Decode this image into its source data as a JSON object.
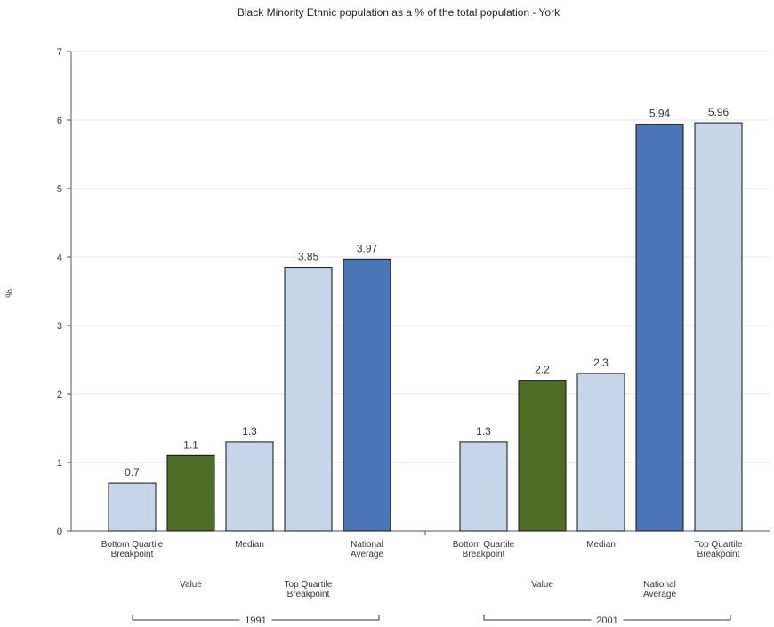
{
  "chart_data": {
    "type": "bar",
    "title": "Black Minority Ethnic population as a % of the total population - York",
    "ylabel": "%",
    "ylim": [
      0,
      7
    ],
    "yticks": [
      0,
      1,
      2,
      3,
      4,
      5,
      6,
      7
    ],
    "grid": true,
    "groups": [
      {
        "label": "1991",
        "bars": [
          {
            "category": [
              "Bottom Quartile",
              "Breakpoint"
            ],
            "value": 0.7,
            "value_label": "0.7",
            "kind": "quartile"
          },
          {
            "category": [
              "Value"
            ],
            "value": 1.1,
            "value_label": "1.1",
            "kind": "value"
          },
          {
            "category": [
              "Median"
            ],
            "value": 1.3,
            "value_label": "1.3",
            "kind": "quartile"
          },
          {
            "category": [
              "Top Quartile",
              "Breakpoint"
            ],
            "value": 3.85,
            "value_label": "3.85",
            "kind": "quartile"
          },
          {
            "category": [
              "National",
              "Average"
            ],
            "value": 3.97,
            "value_label": "3.97",
            "kind": "national"
          }
        ]
      },
      {
        "label": "2001",
        "bars": [
          {
            "category": [
              "Bottom Quartile",
              "Breakpoint"
            ],
            "value": 1.3,
            "value_label": "1.3",
            "kind": "quartile"
          },
          {
            "category": [
              "Value"
            ],
            "value": 2.2,
            "value_label": "2.2",
            "kind": "value"
          },
          {
            "category": [
              "Median"
            ],
            "value": 2.3,
            "value_label": "2.3",
            "kind": "quartile"
          },
          {
            "category": [
              "National",
              "Average"
            ],
            "value": 5.94,
            "value_label": "5.94",
            "kind": "national"
          },
          {
            "category": [
              "Top Quartile",
              "Breakpoint"
            ],
            "value": 5.96,
            "value_label": "5.96",
            "kind": "quartile"
          }
        ]
      }
    ],
    "colors": {
      "quartile": "#c5d5ea",
      "value": "#4e6e26",
      "national": "#4a76b8",
      "outline": "#111111"
    }
  }
}
